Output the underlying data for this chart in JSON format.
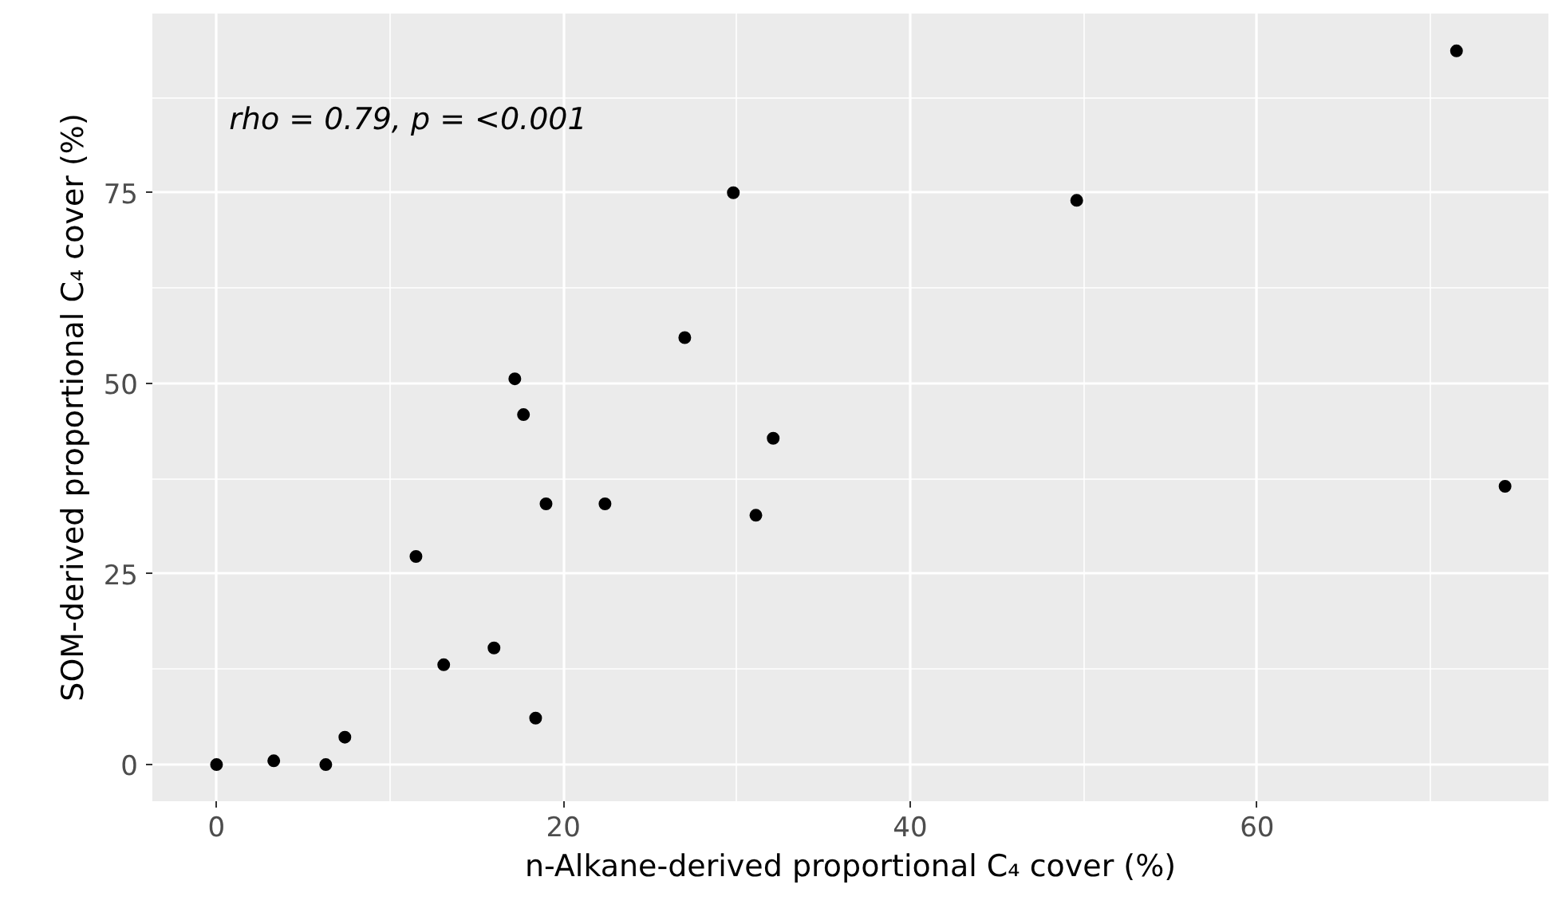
{
  "chart_data": {
    "type": "scatter",
    "xlabel": "n-Alkane-derived proportional C₄ cover (%)",
    "ylabel": "SOM-derived proportional C₄ cover (%)",
    "annotations": [
      "rho = 0.79, p = <0.001"
    ],
    "x": [
      0,
      3.3,
      6.3,
      7.4,
      11.5,
      13.1,
      16.0,
      18.4,
      17.2,
      17.7,
      19.0,
      22.4,
      27.0,
      29.8,
      31.1,
      32.1,
      49.6,
      71.5,
      74.3
    ],
    "series": [
      {
        "color": "#000000",
        "values": [
          0,
          0.5,
          0,
          3.6,
          27.3,
          13.1,
          15.3,
          6.1,
          50.6,
          45.9,
          34.2,
          34.2,
          56.0,
          75,
          32.7,
          42.8,
          74.0,
          93.6,
          36.5
        ]
      }
    ],
    "xlim": [
      -3.7,
      76.8
    ],
    "ylim": [
      -4.8,
      98.5
    ],
    "xticks": [
      0,
      20,
      40,
      60
    ],
    "yticks": [
      0,
      25,
      50,
      75
    ],
    "grid": true,
    "marker": "circle"
  }
}
